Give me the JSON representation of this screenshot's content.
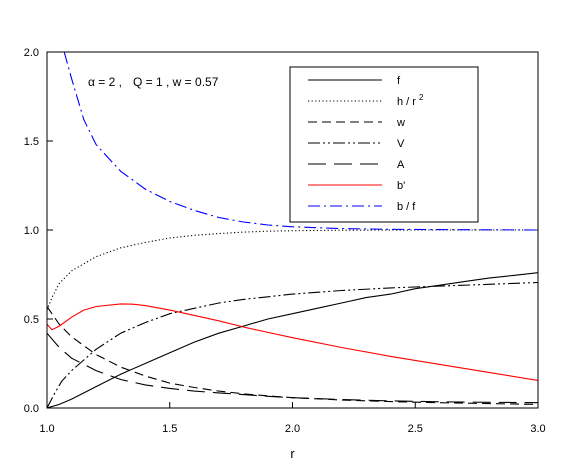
{
  "chart_data": {
    "type": "line",
    "title": "",
    "xlabel": "r",
    "ylabel": "",
    "xlim": [
      1.0,
      3.0
    ],
    "ylim": [
      0.0,
      2.0
    ],
    "xticks": [
      "1.0",
      "1.5",
      "2.0",
      "2.5",
      "3.0"
    ],
    "yticks": [
      "0.0",
      "0.5",
      "1.0",
      "1.5",
      "2.0"
    ],
    "grid": false,
    "legend_position": "top-right",
    "annotation": {
      "alpha_symbol": "α = 2 ,",
      "params": "Q = 1 , w = 0.57"
    },
    "series": [
      {
        "name": "f",
        "color": "#000000",
        "dash": "solid",
        "points": [
          [
            1.0,
            0.0
          ],
          [
            1.05,
            0.02
          ],
          [
            1.1,
            0.05
          ],
          [
            1.2,
            0.12
          ],
          [
            1.3,
            0.19
          ],
          [
            1.4,
            0.25
          ],
          [
            1.5,
            0.31
          ],
          [
            1.6,
            0.37
          ],
          [
            1.7,
            0.42
          ],
          [
            1.8,
            0.46
          ],
          [
            1.9,
            0.5
          ],
          [
            2.0,
            0.53
          ],
          [
            2.1,
            0.56
          ],
          [
            2.2,
            0.59
          ],
          [
            2.3,
            0.62
          ],
          [
            2.4,
            0.64
          ],
          [
            2.5,
            0.67
          ],
          [
            2.6,
            0.69
          ],
          [
            2.7,
            0.71
          ],
          [
            2.8,
            0.73
          ],
          [
            2.9,
            0.745
          ],
          [
            3.0,
            0.76
          ]
        ]
      },
      {
        "name_text": "h / r",
        "name_sup": "2",
        "color": "#000000",
        "dash": "dotted",
        "points": [
          [
            1.0,
            0.55
          ],
          [
            1.02,
            0.62
          ],
          [
            1.05,
            0.7
          ],
          [
            1.1,
            0.77
          ],
          [
            1.2,
            0.85
          ],
          [
            1.3,
            0.9
          ],
          [
            1.4,
            0.93
          ],
          [
            1.5,
            0.955
          ],
          [
            1.6,
            0.97
          ],
          [
            1.7,
            0.98
          ],
          [
            1.8,
            0.988
          ],
          [
            1.9,
            0.993
          ],
          [
            2.0,
            0.996
          ],
          [
            2.2,
            0.999
          ],
          [
            2.5,
            1.0
          ],
          [
            3.0,
            1.0
          ]
        ]
      },
      {
        "name": "w",
        "color": "#000000",
        "dash": "dashed",
        "points": [
          [
            1.0,
            0.57
          ],
          [
            1.05,
            0.47
          ],
          [
            1.1,
            0.4
          ],
          [
            1.2,
            0.3
          ],
          [
            1.3,
            0.23
          ],
          [
            1.4,
            0.18
          ],
          [
            1.5,
            0.14
          ],
          [
            1.6,
            0.115
          ],
          [
            1.7,
            0.095
          ],
          [
            1.8,
            0.08
          ],
          [
            1.9,
            0.068
          ],
          [
            2.0,
            0.058
          ],
          [
            2.2,
            0.045
          ],
          [
            2.4,
            0.036
          ],
          [
            2.6,
            0.03
          ],
          [
            2.8,
            0.025
          ],
          [
            3.0,
            0.02
          ]
        ]
      },
      {
        "name": "V",
        "color": "#000000",
        "dash": "dashdotdot",
        "points": [
          [
            1.0,
            0.0
          ],
          [
            1.03,
            0.08
          ],
          [
            1.06,
            0.15
          ],
          [
            1.1,
            0.21
          ],
          [
            1.2,
            0.33
          ],
          [
            1.3,
            0.42
          ],
          [
            1.4,
            0.48
          ],
          [
            1.5,
            0.53
          ],
          [
            1.6,
            0.56
          ],
          [
            1.7,
            0.59
          ],
          [
            1.8,
            0.61
          ],
          [
            1.9,
            0.625
          ],
          [
            2.0,
            0.64
          ],
          [
            2.2,
            0.66
          ],
          [
            2.4,
            0.675
          ],
          [
            2.6,
            0.685
          ],
          [
            2.8,
            0.695
          ],
          [
            3.0,
            0.705
          ]
        ]
      },
      {
        "name": "A",
        "color": "#000000",
        "dash": "longdash",
        "points": [
          [
            1.0,
            0.42
          ],
          [
            1.05,
            0.34
          ],
          [
            1.1,
            0.28
          ],
          [
            1.2,
            0.21
          ],
          [
            1.3,
            0.16
          ],
          [
            1.4,
            0.13
          ],
          [
            1.5,
            0.11
          ],
          [
            1.6,
            0.095
          ],
          [
            1.7,
            0.085
          ],
          [
            1.8,
            0.075
          ],
          [
            1.9,
            0.066
          ],
          [
            2.0,
            0.058
          ],
          [
            2.2,
            0.048
          ],
          [
            2.4,
            0.04
          ],
          [
            2.6,
            0.035
          ],
          [
            2.8,
            0.032
          ],
          [
            3.0,
            0.03
          ]
        ]
      },
      {
        "name": "b'",
        "color": "#ff0000",
        "dash": "solid",
        "points": [
          [
            1.0,
            0.47
          ],
          [
            1.02,
            0.44
          ],
          [
            1.05,
            0.46
          ],
          [
            1.1,
            0.51
          ],
          [
            1.15,
            0.55
          ],
          [
            1.2,
            0.57
          ],
          [
            1.3,
            0.585
          ],
          [
            1.35,
            0.583
          ],
          [
            1.4,
            0.575
          ],
          [
            1.5,
            0.55
          ],
          [
            1.6,
            0.52
          ],
          [
            1.7,
            0.49
          ],
          [
            1.8,
            0.455
          ],
          [
            1.9,
            0.425
          ],
          [
            2.0,
            0.395
          ],
          [
            2.2,
            0.34
          ],
          [
            2.4,
            0.29
          ],
          [
            2.6,
            0.245
          ],
          [
            2.8,
            0.2
          ],
          [
            3.0,
            0.155
          ]
        ]
      },
      {
        "name": "b / f",
        "color": "#0000ff",
        "dash": "dashdot",
        "points": [
          [
            1.07,
            2.0
          ],
          [
            1.1,
            1.85
          ],
          [
            1.15,
            1.62
          ],
          [
            1.2,
            1.48
          ],
          [
            1.3,
            1.33
          ],
          [
            1.4,
            1.23
          ],
          [
            1.5,
            1.16
          ],
          [
            1.6,
            1.11
          ],
          [
            1.7,
            1.07
          ],
          [
            1.8,
            1.045
          ],
          [
            1.9,
            1.028
          ],
          [
            2.0,
            1.018
          ],
          [
            2.2,
            1.008
          ],
          [
            2.4,
            1.004
          ],
          [
            2.6,
            1.002
          ],
          [
            2.8,
            1.001
          ],
          [
            3.0,
            1.0
          ]
        ]
      }
    ]
  }
}
